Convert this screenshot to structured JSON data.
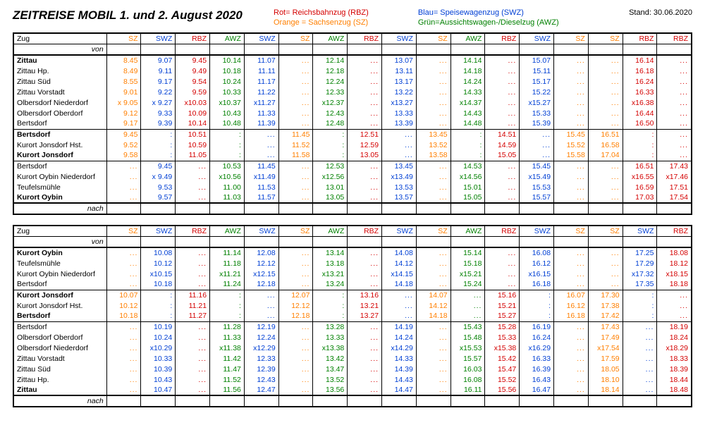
{
  "colors": {
    "red": "#d40000",
    "blue": "#003fd4",
    "green": "#008000",
    "orange": "#ff7f00",
    "black": "#000000"
  },
  "header": {
    "title": "ZEITREISE MOBIL 1. und 2. August 2020",
    "legend": [
      {
        "text": "Rot= Reichsbahnzug (RBZ)",
        "color": "red"
      },
      {
        "text": "Orange = Sachsenzug (SZ)",
        "color": "orange"
      },
      {
        "text": "Blau= Speisewagenzug (SWZ)",
        "color": "blue"
      },
      {
        "text": "Grün=Aussichtswagen-/Dieselzug (AWZ)",
        "color": "green"
      }
    ],
    "stand": "Stand: 30.06.2020"
  },
  "trainTypeColor": {
    "SZ": "orange",
    "SWZ": "blue",
    "RBZ": "red",
    "AWZ": "green"
  },
  "zugLabel": "Zug",
  "vonLabel": "von",
  "nachLabel": "nach",
  "dots": "...",
  "tables": [
    {
      "cols": [
        "SZ",
        "SWZ",
        "RBZ",
        "AWZ",
        "SWZ",
        "SZ",
        "AWZ",
        "RBZ",
        "SWZ",
        "SZ",
        "AWZ",
        "RBZ",
        "SWZ",
        "SZ",
        "SZ",
        "RBZ",
        "RBZ"
      ],
      "groups": [
        {
          "rows": [
            {
              "station": "Zittau",
              "bold": true,
              "t": [
                "8.45",
                "9.07",
                "9.45",
                "10.14",
                "11.07",
                "...",
                "12.14",
                "...",
                "13.07",
                "...",
                "14.14",
                "...",
                "15.07",
                "...",
                "...",
                "16.14",
                "..."
              ]
            },
            {
              "station": "Zittau Hp.",
              "t": [
                "8.49",
                "9.11",
                "9.49",
                "10.18",
                "11.11",
                "...",
                "12.18",
                "...",
                "13.11",
                "...",
                "14.18",
                "...",
                "15.11",
                "...",
                "...",
                "16.18",
                "..."
              ]
            },
            {
              "station": "Zittau Süd",
              "t": [
                "8.55",
                "9.17",
                "9.54",
                "10.24",
                "11.17",
                "...",
                "12.24",
                "...",
                "13.17",
                "...",
                "14.24",
                "...",
                "15.17",
                "...",
                "...",
                "16.24",
                "..."
              ]
            },
            {
              "station": "Zittau Vorstadt",
              "t": [
                "9.01",
                "9.22",
                "9.59",
                "10.33",
                "11.22",
                "...",
                "12.33",
                "...",
                "13.22",
                "...",
                "14.33",
                "...",
                "15.22",
                "...",
                "...",
                "16.33",
                "..."
              ]
            },
            {
              "station": "Olbersdorf Niederdorf",
              "t": [
                "x 9.05",
                "x 9.27",
                "x10.03",
                "x10.37",
                "x11.27",
                "...",
                "x12.37",
                "...",
                "x13.27",
                "...",
                "x14.37",
                "...",
                "x15.27",
                "...",
                "...",
                "x16.38",
                "..."
              ]
            },
            {
              "station": "Olbersdorf Oberdorf",
              "t": [
                "9.12",
                "9.33",
                "10.09",
                "10.43",
                "11.33",
                "...",
                "12.43",
                "...",
                "13.33",
                "...",
                "14.43",
                "...",
                "15.33",
                "...",
                "...",
                "16.44",
                "..."
              ]
            },
            {
              "station": "Bertsdorf",
              "t": [
                "9.17",
                "9.39",
                "10.14",
                "10.48",
                "11.39",
                "...",
                "12.48",
                "...",
                "13.39",
                "...",
                "14.48",
                "...",
                "15.39",
                "...",
                "...",
                "16.50",
                "..."
              ]
            }
          ]
        },
        {
          "rows": [
            {
              "station": "Bertsdorf",
              "bold": true,
              "t": [
                "9.45",
                ":",
                "10.51",
                ":",
                "...",
                "11.45",
                ":",
                "12.51",
                "...",
                "13.45",
                ":",
                "14.51",
                "...",
                "15.45",
                "16.51",
                ":",
                "..."
              ]
            },
            {
              "station": "Kurort Jonsdorf Hst.",
              "t": [
                "9.52",
                ":",
                "10.59",
                ":",
                "...",
                "11.52",
                ":",
                "12.59",
                "...",
                "13.52",
                ":",
                "14.59",
                "...",
                "15.52",
                "16.58",
                ":",
                "..."
              ]
            },
            {
              "station": "Kurort Jonsdorf",
              "bold": true,
              "t": [
                "9.58",
                ":",
                "11.05",
                ":",
                "...",
                "11.58",
                ":",
                "13.05",
                "...",
                "13.58",
                ":",
                "15.05",
                "...",
                "15.58",
                "17.04",
                ":",
                "..."
              ]
            }
          ]
        },
        {
          "rows": [
            {
              "station": "Bertsdorf",
              "t": [
                "...",
                "9.45",
                "...",
                "10.53",
                "11.45",
                "...",
                "12.53",
                "...",
                "13.45",
                "...",
                "14.53",
                "...",
                "15.45",
                "...",
                "...",
                "16.51",
                "17.43"
              ]
            },
            {
              "station": "Kurort Oybin Niederdorf",
              "t": [
                "...",
                "x 9.49",
                "...",
                "x10.56",
                "x11.49",
                "...",
                "x12.56",
                "...",
                "x13.49",
                "...",
                "x14.56",
                "...",
                "x15.49",
                "...",
                "...",
                "x16.55",
                "x17.46"
              ]
            },
            {
              "station": "Teufelsmühle",
              "t": [
                "...",
                "9.53",
                "...",
                "11.00",
                "11.53",
                "...",
                "13.01",
                "...",
                "13.53",
                "...",
                "15.01",
                "...",
                "15.53",
                "...",
                "...",
                "16.59",
                "17.51"
              ]
            },
            {
              "station": "Kurort Oybin",
              "bold": true,
              "t": [
                "...",
                "9.57",
                "...",
                "11.03",
                "11.57",
                "...",
                "13.05",
                "...",
                "13.57",
                "...",
                "15.05",
                "...",
                "15.57",
                "...",
                "...",
                "17.03",
                "17.54"
              ]
            }
          ]
        }
      ]
    },
    {
      "cols": [
        "SZ",
        "SWZ",
        "RBZ",
        "AWZ",
        "SWZ",
        "SZ",
        "AWZ",
        "RBZ",
        "SWZ",
        "SZ",
        "AWZ",
        "RBZ",
        "SWZ",
        "SZ",
        "SZ",
        "SWZ",
        "RBZ"
      ],
      "groups": [
        {
          "rows": [
            {
              "station": "Kurort Oybin",
              "bold": true,
              "t": [
                "...",
                "10.08",
                "...",
                "11.14",
                "12.08",
                "...",
                "13.14",
                "...",
                "14.08",
                "...",
                "15.14",
                "...",
                "16.08",
                "...",
                "...",
                "17.25",
                "18.08"
              ]
            },
            {
              "station": "Teufelsmühle",
              "t": [
                "...",
                "10.12",
                "...",
                "11.18",
                "12.12",
                "...",
                "13.18",
                "...",
                "14.12",
                "...",
                "15.18",
                "...",
                "16.12",
                "...",
                "...",
                "17.29",
                "18.12"
              ]
            },
            {
              "station": "Kurort Oybin Niederdorf",
              "t": [
                "...",
                "x10.15",
                "...",
                "x11.21",
                "x12.15",
                "...",
                "x13.21",
                "...",
                "x14.15",
                "...",
                "x15.21",
                "...",
                "x16.15",
                "...",
                "...",
                "x17.32",
                "x18.15"
              ]
            },
            {
              "station": "Bertsdorf",
              "t": [
                "...",
                "10.18",
                "...",
                "11.24",
                "12.18",
                "...",
                "13.24",
                "...",
                "14.18",
                "...",
                "15.24",
                "...",
                "16.18",
                "...",
                "...",
                "17.35",
                "18.18"
              ]
            }
          ]
        },
        {
          "rows": [
            {
              "station": "Kurort Jonsdorf",
              "bold": true,
              "t": [
                "10.07",
                ":",
                "11.16",
                ":",
                "...",
                "12.07",
                ":",
                "13.16",
                "...",
                "14.07",
                "...",
                "15.16",
                ":",
                "16.07",
                "17.30",
                ":",
                "..."
              ]
            },
            {
              "station": "Kurort Jonsdorf Hst.",
              "t": [
                "10.12",
                ":",
                "11.21",
                ":",
                "...",
                "12.12",
                ":",
                "13.21",
                "...",
                "14.12",
                "...",
                "15.21",
                ":",
                "16.12",
                "17.38",
                ":",
                "..."
              ]
            },
            {
              "station": "Bertsdorf",
              "bold": true,
              "t": [
                "10.18",
                ":",
                "11.27",
                ":",
                "...",
                "12.18",
                ":",
                "13.27",
                "...",
                "14.18",
                "...",
                "15.27",
                ":",
                "16.18",
                "17.42",
                ":",
                "..."
              ]
            }
          ]
        },
        {
          "rows": [
            {
              "station": "Bertsdorf",
              "t": [
                "...",
                "10.19",
                "...",
                "11.28",
                "12.19",
                "...",
                "13.28",
                "...",
                "14.19",
                "...",
                "15.43",
                "15.28",
                "16.19",
                "...",
                "17.43",
                "...",
                "18.19"
              ]
            },
            {
              "station": "Olbersdorf Oberdorf",
              "t": [
                "...",
                "10.24",
                "...",
                "11.33",
                "12.24",
                "...",
                "13.33",
                "...",
                "14.24",
                "...",
                "15.48",
                "15.33",
                "16.24",
                "...",
                "17.49",
                "...",
                "18.24"
              ]
            },
            {
              "station": "Olbersdorf Niederdorf",
              "t": [
                "...",
                "x10.29",
                "...",
                "x11.38",
                "x12.29",
                "...",
                "x13.38",
                "...",
                "x14.29",
                "...",
                "x15.53",
                "x15.38",
                "x16.29",
                "...",
                "x17.54",
                "...",
                "x18.29"
              ]
            },
            {
              "station": "Zittau Vorstadt",
              "t": [
                "...",
                "10.33",
                "...",
                "11.42",
                "12.33",
                "...",
                "13.42",
                "...",
                "14.33",
                "...",
                "15.57",
                "15.42",
                "16.33",
                "...",
                "17.59",
                "...",
                "18.33"
              ]
            },
            {
              "station": "Zittau Süd",
              "t": [
                "...",
                "10.39",
                "...",
                "11.47",
                "12.39",
                "...",
                "13.47",
                "...",
                "14.39",
                "...",
                "16.03",
                "15.47",
                "16.39",
                "...",
                "18.05",
                "...",
                "18.39"
              ]
            },
            {
              "station": "Zittau Hp.",
              "t": [
                "...",
                "10.43",
                "...",
                "11.52",
                "12.43",
                "...",
                "13.52",
                "...",
                "14.43",
                "...",
                "16.08",
                "15.52",
                "16.43",
                "...",
                "18.10",
                "...",
                "18.44"
              ]
            },
            {
              "station": "Zittau",
              "bold": true,
              "t": [
                "...",
                "10.47",
                "...",
                "11.56",
                "12.47",
                "...",
                "13.56",
                "...",
                "14.47",
                "...",
                "16.11",
                "15.56",
                "16.47",
                "...",
                "18.14",
                "...",
                "18.48"
              ]
            }
          ]
        }
      ]
    }
  ]
}
